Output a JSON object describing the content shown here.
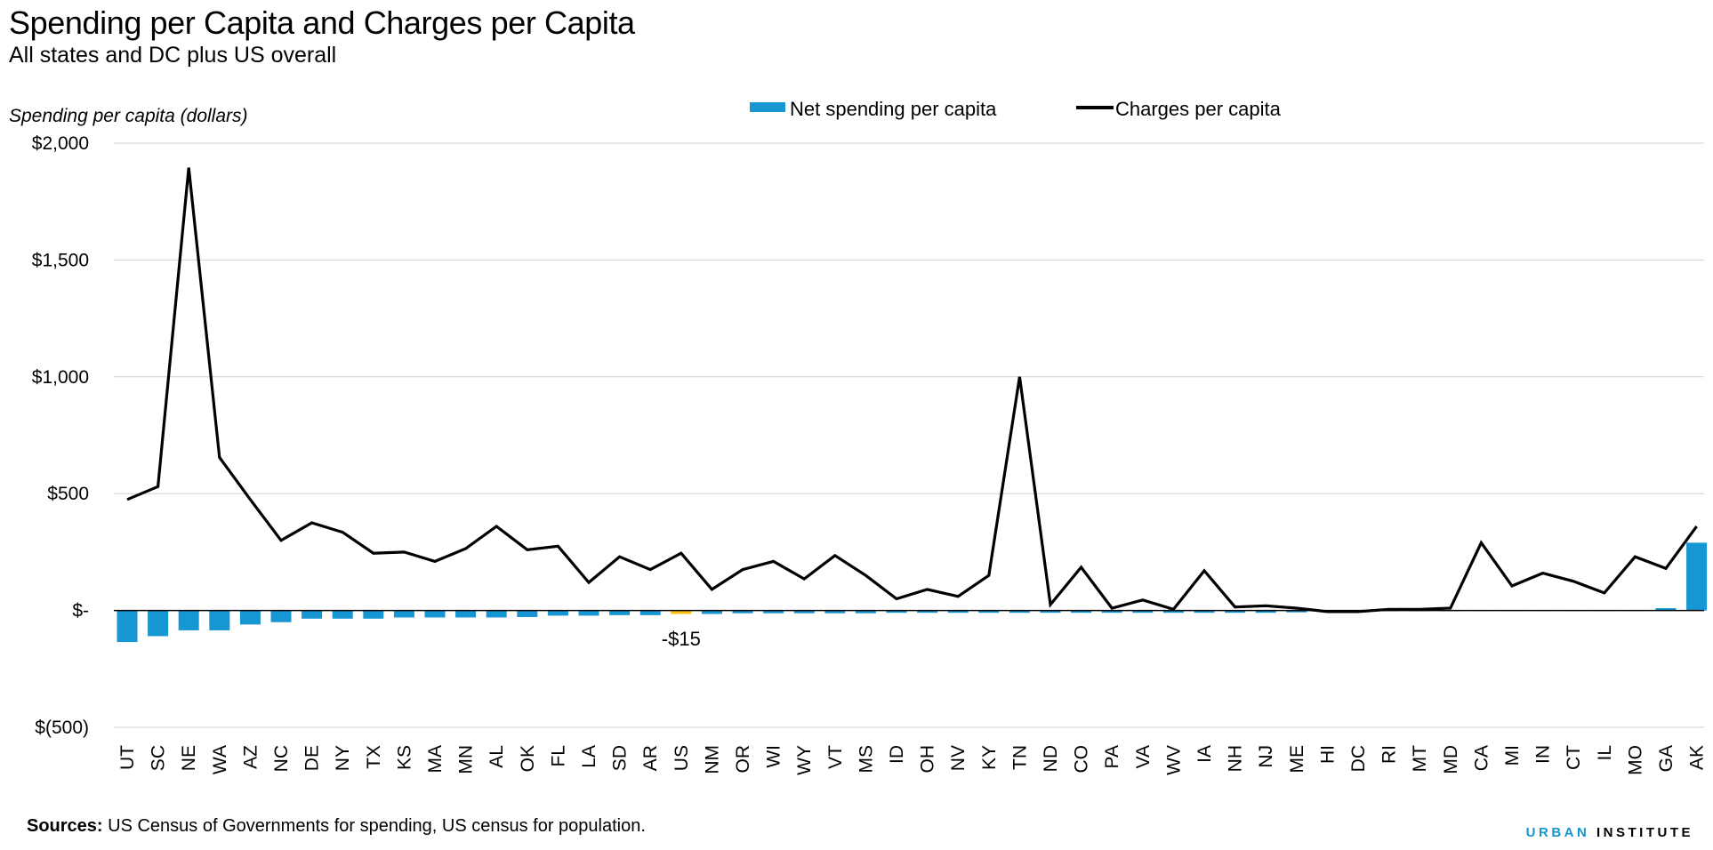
{
  "chart_data": {
    "type": "bar",
    "title": "Spending per Capita and Charges per Capita",
    "subtitle": "All states and DC plus US overall",
    "ylabel": "Spending per capita (dollars)",
    "ylim": [
      -500,
      2000
    ],
    "yticks": [
      2000,
      1500,
      1000,
      500,
      0,
      -500
    ],
    "ytick_labels": [
      "$2,000",
      "$1,500",
      "$1,000",
      "$500",
      "$-",
      "$(500)"
    ],
    "grid": true,
    "legend_position": "top",
    "categories": [
      "UT",
      "SC",
      "NE",
      "WA",
      "AZ",
      "NC",
      "DE",
      "NY",
      "TX",
      "KS",
      "MA",
      "MN",
      "AL",
      "OK",
      "FL",
      "LA",
      "SD",
      "AR",
      "US",
      "NM",
      "OR",
      "WI",
      "WY",
      "VT",
      "MS",
      "ID",
      "OH",
      "NV",
      "KY",
      "TN",
      "ND",
      "CO",
      "PA",
      "VA",
      "WV",
      "IA",
      "NH",
      "NJ",
      "ME",
      "HI",
      "DC",
      "RI",
      "MT",
      "MD",
      "CA",
      "MI",
      "IN",
      "CT",
      "IL",
      "MO",
      "GA",
      "AK"
    ],
    "series": [
      {
        "name": "Net spending per capita",
        "kind": "bar",
        "color": "#1696d2",
        "highlight_color": "#fdbf11",
        "highlight_category": "US",
        "values": [
          -135,
          -110,
          -85,
          -85,
          -60,
          -50,
          -35,
          -35,
          -35,
          -30,
          -30,
          -30,
          -30,
          -28,
          -22,
          -22,
          -20,
          -20,
          -15,
          -15,
          -12,
          -12,
          -12,
          -12,
          -12,
          -10,
          -10,
          -10,
          -10,
          -10,
          -10,
          -10,
          -10,
          -10,
          -10,
          -10,
          -10,
          -10,
          -8,
          -5,
          -5,
          -3,
          -3,
          -3,
          0,
          0,
          0,
          0,
          0,
          0,
          10,
          290
        ]
      },
      {
        "name": "Charges per capita",
        "kind": "line",
        "color": "#000000",
        "values": [
          475,
          530,
          1895,
          655,
          475,
          300,
          375,
          335,
          245,
          250,
          210,
          265,
          360,
          260,
          275,
          120,
          230,
          175,
          245,
          90,
          175,
          210,
          135,
          235,
          150,
          50,
          90,
          60,
          150,
          1000,
          25,
          185,
          10,
          45,
          5,
          170,
          15,
          20,
          10,
          -5,
          -5,
          5,
          5,
          10,
          290,
          105,
          160,
          125,
          75,
          230,
          180,
          360
        ]
      }
    ],
    "annotations": [
      {
        "category": "US",
        "text": "-$15"
      }
    ]
  },
  "footer": {
    "sources_label": "Sources:",
    "sources_text": " US Census of Governments for spending, US census for population.",
    "brand_part1": "URBAN",
    "brand_part2": " INSTITUTE"
  }
}
